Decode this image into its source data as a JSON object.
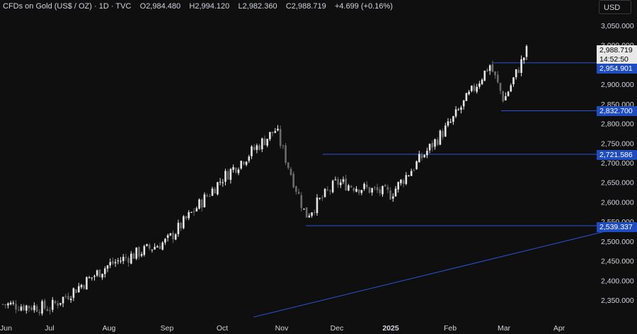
{
  "header": {
    "symbol": "CFDs on Gold (US$ / OZ)",
    "interval": "1D",
    "source": "TVC",
    "open_label": "O",
    "open": "2,984.480",
    "high_label": "H",
    "high": "2,994.120",
    "low_label": "L",
    "low": "2,982.360",
    "close_label": "C",
    "close": "2,988.719",
    "change": "+4.699 (+0.16%)"
  },
  "currency_button": "USD",
  "price_tags": {
    "current_price": "2,988.719",
    "countdown": "14:52:50",
    "levels": [
      "2,954.901",
      "2,832.700",
      "2,721.586",
      "2,539.337"
    ]
  },
  "y_axis_ticks": [
    "3,050.000",
    "3,000.000",
    "2,950.000",
    "2,900.000",
    "2,850.000",
    "2,800.000",
    "2,750.000",
    "2,700.000",
    "2,650.000",
    "2,600.000",
    "2,550.000",
    "2,500.000",
    "2,450.000",
    "2,400.000",
    "2,350.000"
  ],
  "x_axis_ticks": [
    "Jun",
    "Jul",
    "Aug",
    "Sep",
    "Oct",
    "Nov",
    "Dec",
    "2025",
    "Feb",
    "Mar",
    "Apr"
  ],
  "colors": {
    "background": "#0f0f0f",
    "candle_up": "#e6e6e6",
    "candle_down": "#6b6b6b",
    "level_line": "#2a55d6",
    "tag_blue": "#1f4dbf"
  },
  "chart_data": {
    "type": "candlestick",
    "interval": "1D",
    "ylim": [
      2325,
      3075
    ],
    "horizontal_levels": [
      2954.901,
      2832.7,
      2721.586,
      2539.337
    ],
    "trendline": {
      "from": [
        "Nov",
        2312
      ],
      "to": [
        "Mar",
        2539
      ]
    },
    "anchors": [
      {
        "x": "Jun",
        "close": 2340
      },
      {
        "x": "Jul",
        "close": 2330
      },
      {
        "x": "Aug",
        "close": 2440
      },
      {
        "x": "Sep",
        "close": 2500
      },
      {
        "x": "Oct",
        "close": 2660
      },
      {
        "x": "Oct 30",
        "close": 2785
      },
      {
        "x": "Nov",
        "close": 2740
      },
      {
        "x": "Nov 14",
        "close": 2565
      },
      {
        "x": "Dec",
        "close": 2650
      },
      {
        "x": "2025",
        "close": 2620
      },
      {
        "x": "Feb",
        "close": 2800
      },
      {
        "x": "Feb 24",
        "close": 2950
      },
      {
        "x": "Mar",
        "close": 2860
      },
      {
        "x": "Mar 14",
        "close": 2988.719
      }
    ]
  }
}
